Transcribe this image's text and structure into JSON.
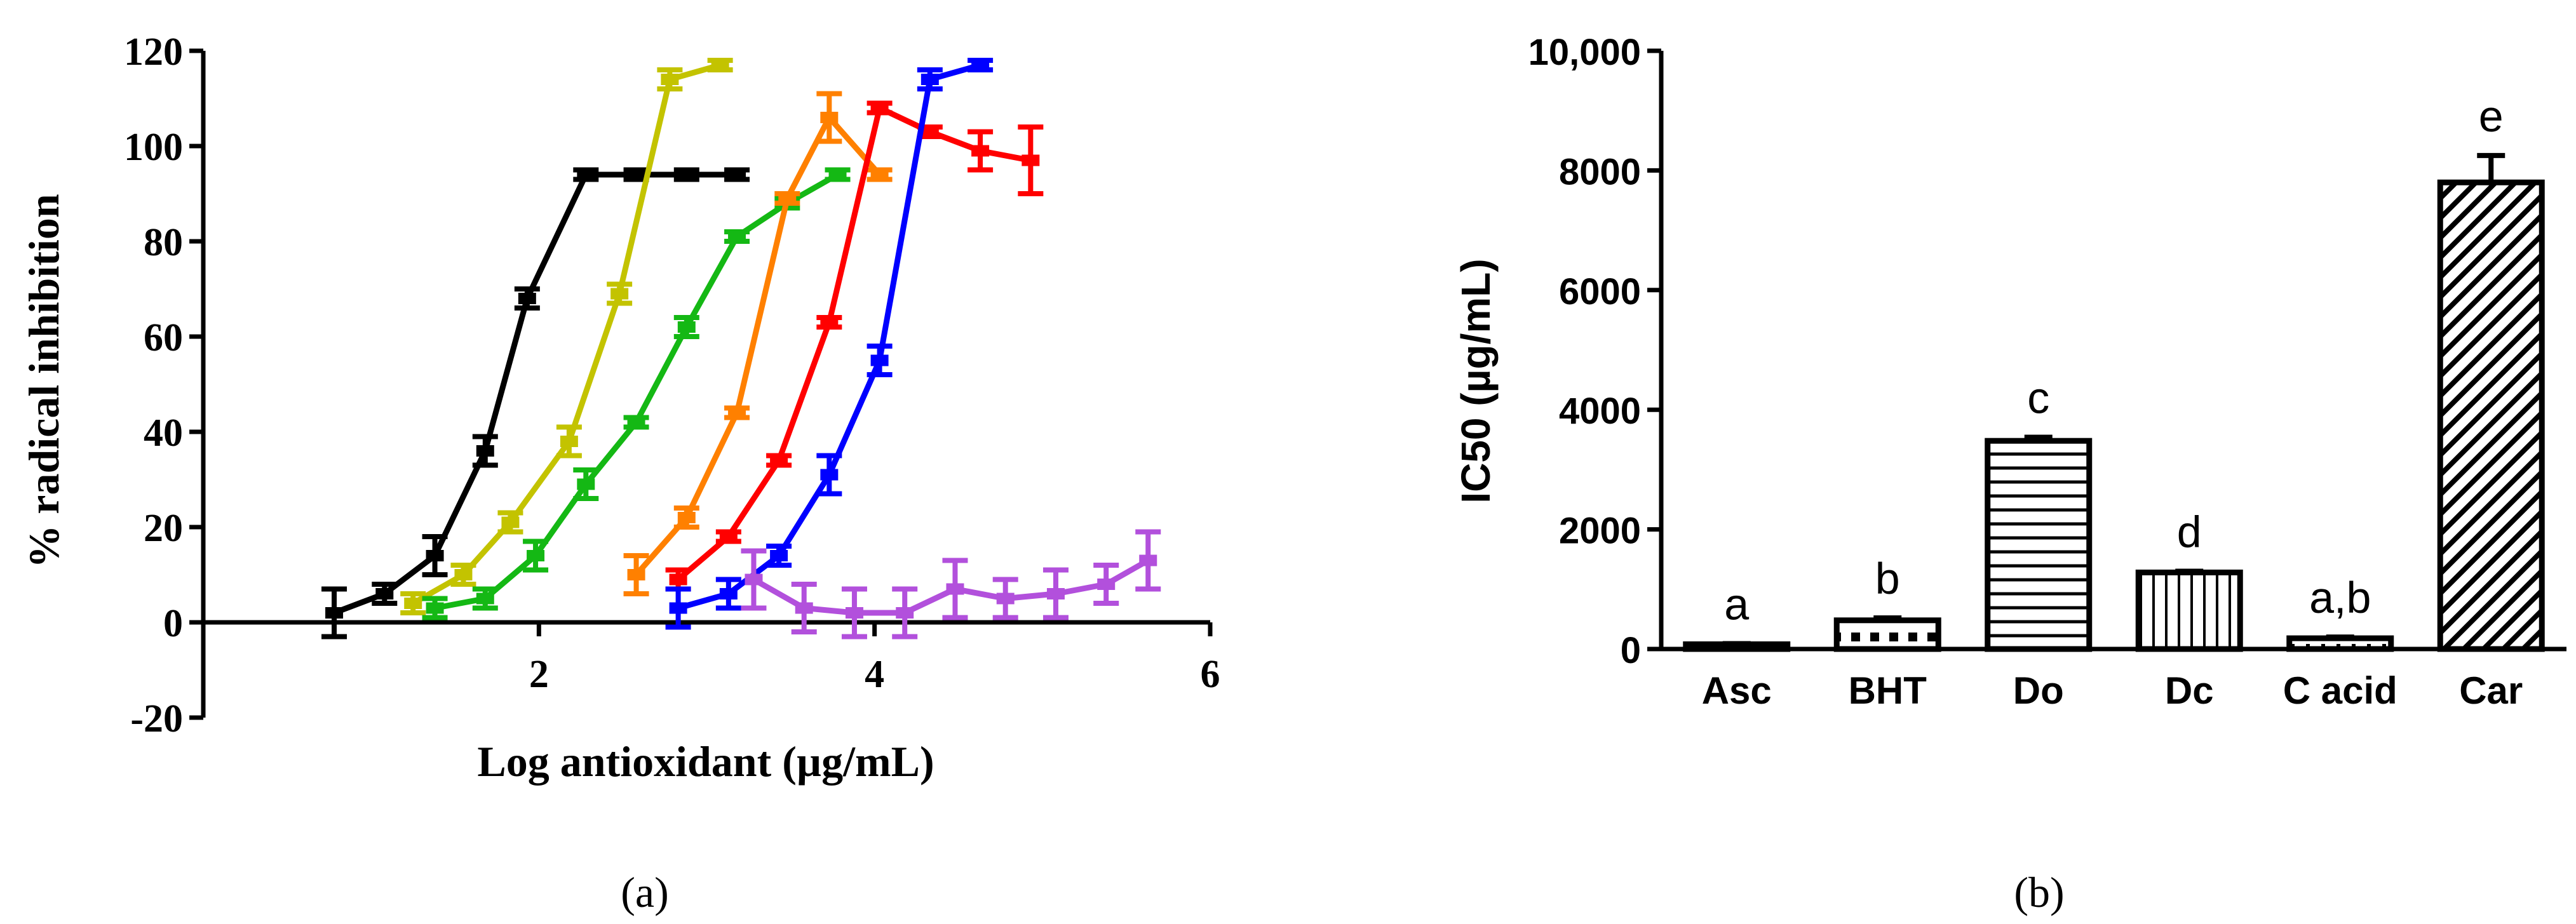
{
  "chart_data": [
    {
      "type": "line",
      "panel_label": "(a)",
      "xlabel": "Log antioxidant (µg/mL)",
      "ylabel": "% radical inhibition",
      "xlim": [
        0,
        6
      ],
      "ylim": [
        -20,
        120
      ],
      "xticks": [
        2,
        4,
        6
      ],
      "yticks": [
        -20,
        0,
        20,
        40,
        60,
        80,
        100,
        120
      ],
      "grid": false,
      "legend": "none",
      "series": [
        {
          "color": "#000000",
          "points": [
            [
              0.78,
              2,
              5
            ],
            [
              1.08,
              6,
              2
            ],
            [
              1.38,
              14,
              4
            ],
            [
              1.68,
              36,
              3
            ],
            [
              1.93,
              68,
              2
            ],
            [
              2.28,
              94,
              1
            ],
            [
              2.58,
              94,
              1
            ],
            [
              2.88,
              94,
              1
            ],
            [
              3.18,
              94,
              1
            ]
          ]
        },
        {
          "color": "#c3c300",
          "points": [
            [
              1.25,
              4,
              2
            ],
            [
              1.55,
              10,
              2
            ],
            [
              1.83,
              21,
              2
            ],
            [
              2.18,
              38,
              3
            ],
            [
              2.48,
              69,
              2
            ],
            [
              2.78,
              114,
              2
            ],
            [
              3.08,
              117,
              1
            ]
          ]
        },
        {
          "color": "#14b814",
          "points": [
            [
              1.38,
              3,
              2
            ],
            [
              1.68,
              5,
              2
            ],
            [
              1.98,
              14,
              3
            ],
            [
              2.28,
              29,
              3
            ],
            [
              2.58,
              42,
              1
            ],
            [
              2.88,
              62,
              2
            ],
            [
              3.18,
              81,
              1
            ],
            [
              3.48,
              88,
              1
            ],
            [
              3.78,
              94,
              1
            ]
          ]
        },
        {
          "color": "#ff8000",
          "points": [
            [
              2.58,
              10,
              4
            ],
            [
              2.88,
              22,
              2
            ],
            [
              3.18,
              44,
              1
            ],
            [
              3.48,
              89,
              1
            ],
            [
              3.73,
              106,
              5
            ],
            [
              4.03,
              94,
              1
            ]
          ]
        },
        {
          "color": "#ff0000",
          "points": [
            [
              2.83,
              9,
              2
            ],
            [
              3.13,
              18,
              1
            ],
            [
              3.43,
              34,
              1
            ],
            [
              3.73,
              63,
              1
            ],
            [
              4.03,
              108,
              1
            ],
            [
              4.33,
              103,
              1
            ],
            [
              4.63,
              99,
              4
            ],
            [
              4.93,
              97,
              7
            ]
          ]
        },
        {
          "color": "#0000ff",
          "points": [
            [
              2.83,
              3,
              4
            ],
            [
              3.13,
              6,
              3
            ],
            [
              3.43,
              14,
              2
            ],
            [
              3.73,
              31,
              4
            ],
            [
              4.03,
              55,
              3
            ],
            [
              4.33,
              114,
              2
            ],
            [
              4.63,
              117,
              1
            ]
          ]
        },
        {
          "color": "#b250dc",
          "points": [
            [
              3.28,
              9,
              6
            ],
            [
              3.58,
              3,
              5
            ],
            [
              3.88,
              2,
              5
            ],
            [
              4.18,
              2,
              5
            ],
            [
              4.48,
              7,
              6
            ],
            [
              4.78,
              5,
              4
            ],
            [
              5.08,
              6,
              5
            ],
            [
              5.38,
              8,
              4
            ],
            [
              5.63,
              13,
              6
            ]
          ]
        }
      ]
    },
    {
      "type": "bar",
      "panel_label": "(b)",
      "ylabel": "IC50 (µg/mL)",
      "ylim": [
        0,
        10000
      ],
      "ytick_labels": [
        "0",
        "2000",
        "4000",
        "6000",
        "8000",
        "10,000"
      ],
      "categories": [
        "Asc",
        "BHT",
        "Do",
        "Dc",
        "C acid",
        "Car"
      ],
      "values": [
        80,
        480,
        3480,
        1280,
        180,
        7800
      ],
      "errors": [
        10,
        40,
        60,
        20,
        20,
        450
      ],
      "letters": [
        "a",
        "b",
        "c",
        "d",
        "a,b",
        "e"
      ],
      "patterns": [
        "solid",
        "checker",
        "horizontal",
        "vertical",
        "sparse",
        "diagonal"
      ],
      "grid": false,
      "legend": "none"
    }
  ]
}
